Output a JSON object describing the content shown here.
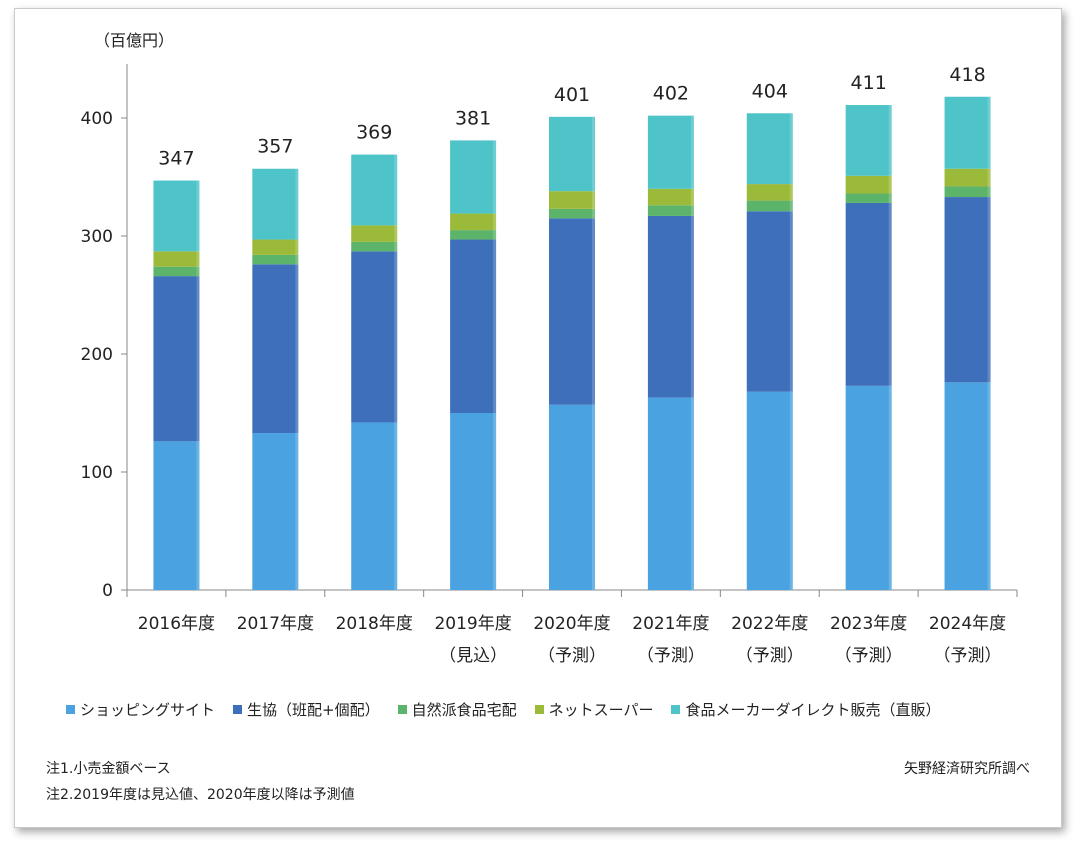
{
  "chart_data": {
    "type": "bar",
    "stacked": true,
    "unit_label": "（百億円）",
    "categories": [
      [
        "2016年度",
        ""
      ],
      [
        "2017年度",
        ""
      ],
      [
        "2018年度",
        ""
      ],
      [
        "2019年度",
        "（見込）"
      ],
      [
        "2020年度",
        "（予測）"
      ],
      [
        "2021年度",
        "（予測）"
      ],
      [
        "2022年度",
        "（予測）"
      ],
      [
        "2023年度",
        "（予測）"
      ],
      [
        "2024年度",
        "（予測）"
      ]
    ],
    "series": [
      {
        "name": "ショッピングサイト",
        "color": "#4aa3e0",
        "values": [
          126,
          133,
          142,
          150,
          157,
          163,
          168,
          173,
          176
        ]
      },
      {
        "name": "生協（班配+個配）",
        "color": "#3e6fba",
        "values": [
          140,
          143,
          145,
          147,
          158,
          154,
          153,
          155,
          157
        ]
      },
      {
        "name": "自然派食品宅配",
        "color": "#5cb36a",
        "values": [
          8,
          8,
          8,
          8,
          8,
          9,
          9,
          8,
          9
        ]
      },
      {
        "name": "ネットスーパー",
        "color": "#9cba3a",
        "values": [
          13,
          13,
          14,
          14,
          15,
          14,
          14,
          15,
          15
        ]
      },
      {
        "name": "食品メーカーダイレクト販売（直販）",
        "color": "#4ec3c8",
        "values": [
          60,
          60,
          60,
          62,
          63,
          62,
          60,
          60,
          61
        ]
      }
    ],
    "totals": [
      "347",
      "357",
      "369",
      "381",
      "401",
      "402",
      "404",
      "411",
      "418"
    ],
    "y_ticks": [
      "0",
      "100",
      "200",
      "300",
      "400"
    ],
    "ylim": [
      0,
      450
    ],
    "grid": false,
    "legend_position": "bottom"
  },
  "notes": {
    "note1": "注1.小売金額ベース",
    "note2": "注2.2019年度は見込値、2020年度以降は予測値",
    "source": "矢野経済研究所調べ"
  }
}
